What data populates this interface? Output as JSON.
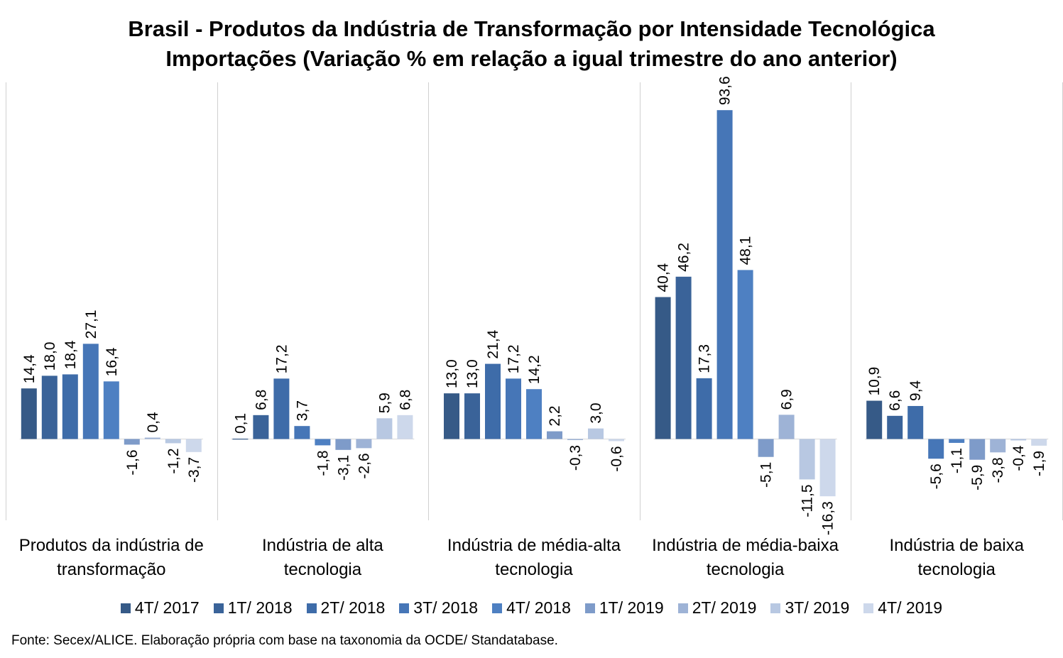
{
  "chart_data": {
    "type": "bar",
    "title": "Brasil - Produtos da Indústria de Transformação por Intensidade Tecnológica",
    "subtitle": "Importações (Variação % em relação a igual trimestre do ano anterior)",
    "categories": [
      [
        "Produtos da indústria de",
        "transformação"
      ],
      [
        "Indústria de alta",
        "tecnologia"
      ],
      [
        "Indústria de média-alta",
        "tecnologia"
      ],
      [
        "Indústria de média-baixa",
        "tecnologia"
      ],
      [
        "Indústria de baixa",
        "tecnologia"
      ]
    ],
    "series": [
      {
        "name": "4T/ 2017",
        "color": "#365a87",
        "values": [
          14.4,
          0.1,
          13.0,
          40.4,
          10.9
        ],
        "labels": [
          "14,4",
          "0,1",
          "13,0",
          "40,4",
          "10,9"
        ]
      },
      {
        "name": "1T/ 2018",
        "color": "#3a6399",
        "values": [
          18.0,
          6.8,
          13.0,
          46.2,
          6.6
        ],
        "labels": [
          "18,0",
          "6,8",
          "13,0",
          "46,2",
          "6,6"
        ]
      },
      {
        "name": "2T/ 2018",
        "color": "#3e6ca9",
        "values": [
          18.4,
          17.2,
          21.4,
          17.3,
          9.4
        ],
        "labels": [
          "18,4",
          "17,2",
          "21,4",
          "17,3",
          "9,4"
        ]
      },
      {
        "name": "3T/ 2018",
        "color": "#4676b7",
        "values": [
          27.1,
          3.7,
          17.2,
          93.6,
          -5.6
        ],
        "labels": [
          "27,1",
          "3,7",
          "17,2",
          "93,6",
          "-5,6"
        ]
      },
      {
        "name": "4T/ 2018",
        "color": "#4e80c2",
        "values": [
          16.4,
          -1.8,
          14.2,
          48.1,
          -1.1
        ],
        "labels": [
          "16,4",
          "-1,8",
          "14,2",
          "48,1",
          "-1,1"
        ]
      },
      {
        "name": "1T/ 2019",
        "color": "#7e9bc9",
        "values": [
          -1.6,
          -3.1,
          2.2,
          -5.1,
          -5.9
        ],
        "labels": [
          "-1,6",
          "-3,1",
          "2,2",
          "-5,1",
          "-5,9"
        ]
      },
      {
        "name": "2T/ 2019",
        "color": "#9eb3d6",
        "values": [
          0.4,
          -2.6,
          -0.3,
          6.9,
          -3.8
        ],
        "labels": [
          "0,4",
          "-2,6",
          "-0,3",
          "6,9",
          "-3,8"
        ]
      },
      {
        "name": "3T/ 2019",
        "color": "#b8c8e2",
        "values": [
          -1.2,
          5.9,
          3.0,
          -11.5,
          -0.4
        ],
        "labels": [
          "-1,2",
          "5,9",
          "3,0",
          "-11,5",
          "-0,4"
        ]
      },
      {
        "name": "4T/ 2019",
        "color": "#cdd8eb",
        "values": [
          -3.7,
          6.8,
          -0.6,
          -16.3,
          -1.9
        ],
        "labels": [
          "-3,7",
          "6,8",
          "-0,6",
          "-16,3",
          "-1,9"
        ]
      }
    ],
    "ylim": [
      -22.5,
      102.5
    ],
    "grid": false,
    "legend_position": "bottom"
  },
  "source_note": "Fonte: Secex/ALICE. Elaboração própria com base na taxonomia da OCDE/ Standatabase."
}
